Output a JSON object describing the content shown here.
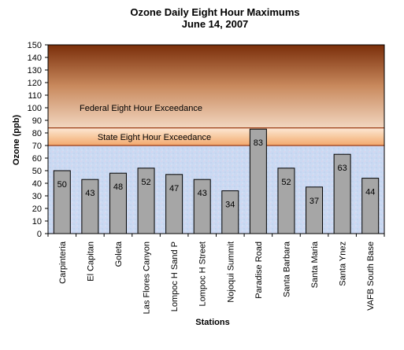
{
  "chart_data": {
    "type": "bar",
    "title": "Ozone Daily  Eight Hour Maximums",
    "subtitle": "June 14, 2007",
    "xlabel": "Stations",
    "ylabel": "Ozone (ppb)",
    "ylim": [
      0,
      150
    ],
    "ytick_step": 10,
    "grid": false,
    "categories": [
      "Carpinteria",
      "El Capitan",
      "Goleta",
      "Las Flores Canyon",
      "Lompoc H Sand P",
      "Lompoc H Street",
      "Nojoqui Summit",
      "Paradise Road",
      "Santa Barbara",
      "Santa Maria",
      "Santa Ynez",
      "VAFB South Base"
    ],
    "values": [
      50,
      43,
      48,
      52,
      47,
      43,
      34,
      83,
      52,
      37,
      63,
      44
    ],
    "bar_color": "#a6a6a6",
    "thresholds": [
      {
        "label": "Federal Eight Hour Exceedance",
        "from": 84,
        "to": 150,
        "color_top": "#7a2e0a",
        "color_bottom": "#f2d6c0"
      },
      {
        "label": "State Eight Hour Exceedance",
        "from": 70,
        "to": 84,
        "color_top": "#fde3cc",
        "color_bottom": "#f5b07a",
        "line_color": "#9a3a12"
      }
    ],
    "background_color": "#c7d6f0"
  }
}
